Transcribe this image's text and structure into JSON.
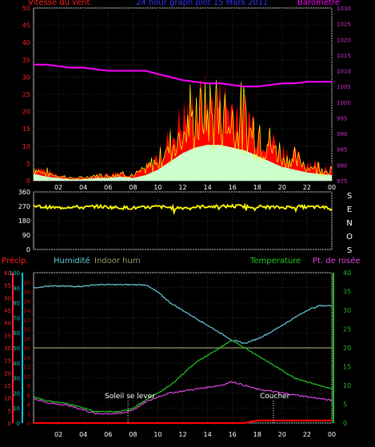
{
  "top": {
    "title": "24 hour graph plot 15 Mars 2011",
    "left_label": "Vitesse du vent",
    "right_label": "Barometre",
    "left_ticks": [
      "0",
      "5",
      "10",
      "15",
      "20",
      "25",
      "30",
      "35",
      "40",
      "45",
      "50"
    ],
    "right_ticks": [
      "975",
      "980",
      "985",
      "990",
      "995",
      "1000",
      "1005",
      "1010",
      "1015",
      "1020",
      "1025",
      "1030"
    ]
  },
  "middle": {
    "ticks": [
      "0",
      "90",
      "180",
      "270",
      "360"
    ],
    "compass": [
      "S",
      "E",
      "N",
      "O",
      "S"
    ]
  },
  "bottom": {
    "precip_label": "Précip.",
    "hum_label": "Humidité",
    "indoor_label": "Indoor hum",
    "temp_label": "Temperature",
    "dew_label": "Pt. de rosée",
    "precip_ticks": [
      "0",
      "5",
      "10",
      "15",
      "20",
      "25",
      "30",
      "35",
      "40",
      "45",
      "50",
      "55",
      "60"
    ],
    "hum_ticks": [
      "0",
      "10",
      "20",
      "30",
      "40",
      "50",
      "60",
      "70",
      "80",
      "90",
      "100"
    ],
    "indoor_ticks": [
      "0",
      "2",
      "4",
      "6",
      "8",
      "10",
      "12",
      "14",
      "16",
      "18",
      "20",
      "22",
      "24",
      "26",
      "28",
      "30"
    ],
    "right_ticks": [
      "0",
      "5",
      "10",
      "15",
      "20",
      "25",
      "30",
      "35",
      "40"
    ],
    "sunrise_label": "Soleil se lever",
    "sunset_label": "Coucher"
  },
  "x_ticks": [
    "02",
    "04",
    "06",
    "08",
    "10",
    "12",
    "14",
    "16",
    "18",
    "20",
    "22",
    "00"
  ],
  "colors": {
    "wind": "#ff0000",
    "gust": "#ffff00",
    "avg_fill": "#ccffcc",
    "baro": "#ff00ff",
    "dir": "#ffff00",
    "hum": "#66ccdd",
    "indoor": "#999966",
    "temp": "#22cc22",
    "dew": "#dd44dd",
    "rain": "#ff0000",
    "axis_left": "#ff2222",
    "axis_mid": "#00ccdd",
    "axis_right": "#22bb22",
    "title": "#3333ff",
    "baro_axis": "#cc33cc",
    "indoor_axis": "#cc0000"
  },
  "chart_data": [
    {
      "type": "area",
      "name": "wind-barometer",
      "x": [
        0,
        1,
        2,
        3,
        4,
        5,
        6,
        7,
        8,
        9,
        10,
        11,
        12,
        13,
        14,
        15,
        16,
        17,
        18,
        19,
        20,
        21,
        22,
        23,
        24
      ],
      "series": [
        {
          "name": "Vitesse du vent",
          "axis": "left",
          "values": [
            5,
            3,
            2,
            1,
            1,
            2,
            2,
            3,
            2,
            4,
            8,
            14,
            20,
            24,
            26,
            26,
            24,
            22,
            18,
            14,
            10,
            8,
            6,
            5,
            4
          ]
        },
        {
          "name": "Barometre",
          "axis": "right",
          "values": [
            1012,
            1012,
            1011.5,
            1011,
            1011,
            1010.5,
            1010,
            1010,
            1010,
            1010,
            1009,
            1008,
            1007,
            1006.5,
            1006,
            1006,
            1005.5,
            1005,
            1005,
            1005.5,
            1006,
            1006,
            1006.5,
            1006.5,
            1006.5
          ]
        }
      ],
      "ylim_left": [
        0,
        50
      ],
      "ylim_right": [
        975,
        1030
      ]
    },
    {
      "type": "line",
      "name": "wind-direction",
      "x": [
        0,
        1,
        2,
        3,
        4,
        5,
        6,
        7,
        8,
        9,
        10,
        11,
        12,
        13,
        14,
        15,
        16,
        17,
        18,
        19,
        20,
        21,
        22,
        23,
        24
      ],
      "series": [
        {
          "values": [
            270,
            265,
            260,
            268,
            262,
            270,
            265,
            262,
            260,
            262,
            268,
            262,
            260,
            265,
            270,
            268,
            272,
            270,
            268,
            265,
            262,
            268,
            265,
            265,
            260
          ]
        }
      ],
      "ylim": [
        0,
        360
      ]
    },
    {
      "type": "line",
      "name": "humidity-temperature",
      "x": [
        0,
        1,
        2,
        3,
        4,
        5,
        6,
        7,
        8,
        9,
        10,
        11,
        12,
        13,
        14,
        15,
        16,
        17,
        18,
        19,
        20,
        21,
        22,
        23,
        24
      ],
      "series": [
        {
          "name": "Humidité",
          "axis": "hum",
          "values": [
            90,
            91,
            91,
            91,
            91,
            92,
            92,
            92,
            92,
            92,
            87,
            80,
            75,
            70,
            65,
            60,
            55,
            53,
            56,
            60,
            65,
            70,
            75,
            78,
            78
          ]
        },
        {
          "name": "Indoor hum",
          "axis": "indoor",
          "values": [
            16,
            16,
            16,
            16,
            16,
            16,
            16,
            16,
            16,
            16,
            16,
            16,
            16,
            16,
            16,
            16,
            16,
            16,
            16,
            16,
            16,
            16,
            16,
            16,
            16
          ]
        },
        {
          "name": "Temperature",
          "axis": "right",
          "values": [
            7,
            6,
            5.5,
            5,
            4,
            3,
            3,
            3,
            4,
            6,
            8,
            10,
            13,
            16,
            18,
            20,
            22,
            20,
            18,
            16,
            14,
            12,
            11,
            10,
            9
          ]
        },
        {
          "name": "Pt. de rosée",
          "axis": "right",
          "values": [
            6.5,
            5.5,
            5,
            4.5,
            3.5,
            2.5,
            2.5,
            2.5,
            3.5,
            5.5,
            7,
            8,
            8.5,
            9,
            9.5,
            10,
            11,
            10,
            9,
            8.5,
            8,
            7.5,
            7,
            6.5,
            6
          ]
        },
        {
          "name": "Précip.",
          "axis": "precip",
          "values": [
            0,
            0,
            0,
            0,
            0,
            0,
            0,
            0,
            0,
            0,
            0,
            0,
            0,
            0,
            0,
            0,
            0,
            0,
            1,
            1,
            1,
            1,
            1,
            1,
            1
          ]
        }
      ],
      "ylim_hum": [
        0,
        100
      ],
      "ylim_right": [
        0,
        40
      ],
      "ylim_precip": [
        0,
        60
      ],
      "ylim_indoor": [
        0,
        32
      ]
    }
  ]
}
